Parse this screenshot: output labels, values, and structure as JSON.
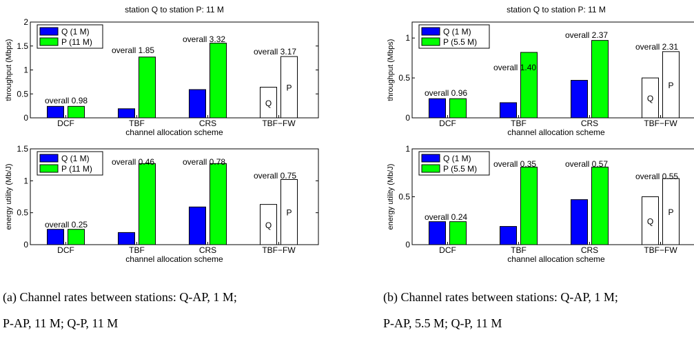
{
  "panels": [
    {
      "title": "station Q to station P: 11 M",
      "caption": [
        "(a)  Channel rates between stations:  Q-AP, 1 M;",
        "P-AP, 11 M; Q-P, 11 M"
      ]
    },
    {
      "title": "station Q to station P: 11 M",
      "caption": [
        "(b)  Channel rates between stations:  Q-AP, 1 M;",
        "P-AP, 5.5 M; Q-P, 11 M"
      ]
    }
  ],
  "colors": {
    "q": "#0000ff",
    "p": "#00ff00",
    "hollow": "#ffffff"
  },
  "chart_data": [
    {
      "type": "bar",
      "title": "station Q to station P: 11 M",
      "xlabel": "channel allocation scheme",
      "ylabel": "throughput (Mbps)",
      "categories": [
        "DCF",
        "TBF",
        "CRS",
        "TBF−FW"
      ],
      "ylim": [
        0,
        2
      ],
      "yticks": [
        "0",
        "0.5",
        "1",
        "1.5",
        "2"
      ],
      "grid": false,
      "legend_position": "top-left",
      "series": [
        {
          "name": "Q (1 M)",
          "values": [
            0.24,
            0.19,
            0.59,
            0.64
          ]
        },
        {
          "name": "P (11 M)",
          "values": [
            0.24,
            1.27,
            1.56,
            1.28
          ]
        }
      ],
      "annotations": [
        "overall 0.98",
        "overall 1.85",
        "overall 3.32",
        "overall 3.17"
      ],
      "bar_letters": [
        "Q",
        "P"
      ]
    },
    {
      "type": "bar",
      "xlabel": "channel allocation scheme",
      "ylabel": "energy utility (Mb/J)",
      "categories": [
        "DCF",
        "TBF",
        "CRS",
        "TBF−FW"
      ],
      "ylim": [
        0,
        1.5
      ],
      "yticks": [
        "0",
        "0.5",
        "1",
        "1.5"
      ],
      "grid": false,
      "legend_position": "top-left",
      "series": [
        {
          "name": "Q (1 M)",
          "values": [
            0.24,
            0.19,
            0.59,
            0.63
          ]
        },
        {
          "name": "P (11 M)",
          "values": [
            0.24,
            1.27,
            1.27,
            1.02
          ]
        }
      ],
      "annotations": [
        "overall 0.25",
        "overall 0.46",
        "overall 0.78",
        "overall 0.75"
      ],
      "bar_letters": [
        "Q",
        "P"
      ]
    },
    {
      "type": "bar",
      "title": "station Q to station P: 11 M",
      "xlabel": "channel allocation scheme",
      "ylabel": "throughput (Mbps)",
      "categories": [
        "DCF",
        "TBF",
        "CRS",
        "TBF−FW"
      ],
      "ylim": [
        0,
        1.2
      ],
      "yticks": [
        "0",
        "0.5",
        "1"
      ],
      "grid": false,
      "legend_position": "top-left",
      "series": [
        {
          "name": "Q (1 M)",
          "values": [
            0.24,
            0.19,
            0.47,
            0.5
          ]
        },
        {
          "name": "P (5.5 M)",
          "values": [
            0.24,
            0.82,
            0.97,
            0.83
          ]
        }
      ],
      "annotations": [
        "overall 0.96",
        "overall 1.40",
        "overall 2.37",
        "overall 2.31"
      ],
      "bar_letters": [
        "Q",
        "P"
      ]
    },
    {
      "type": "bar",
      "xlabel": "channel allocation scheme",
      "ylabel": "energy utility (Mb/J)",
      "categories": [
        "DCF",
        "TBF",
        "CRS",
        "TBF−FW"
      ],
      "ylim": [
        0,
        1
      ],
      "yticks": [
        "0",
        "0.5",
        "1"
      ],
      "grid": false,
      "legend_position": "top-left",
      "series": [
        {
          "name": "Q (1 M)",
          "values": [
            0.24,
            0.19,
            0.47,
            0.5
          ]
        },
        {
          "name": "P (5.5 M)",
          "values": [
            0.24,
            0.81,
            0.81,
            0.69
          ]
        }
      ],
      "annotations": [
        "overall 0.24",
        "overall 0.35",
        "overall 0.57",
        "overall 0.55"
      ],
      "bar_letters": [
        "Q",
        "P"
      ]
    }
  ]
}
